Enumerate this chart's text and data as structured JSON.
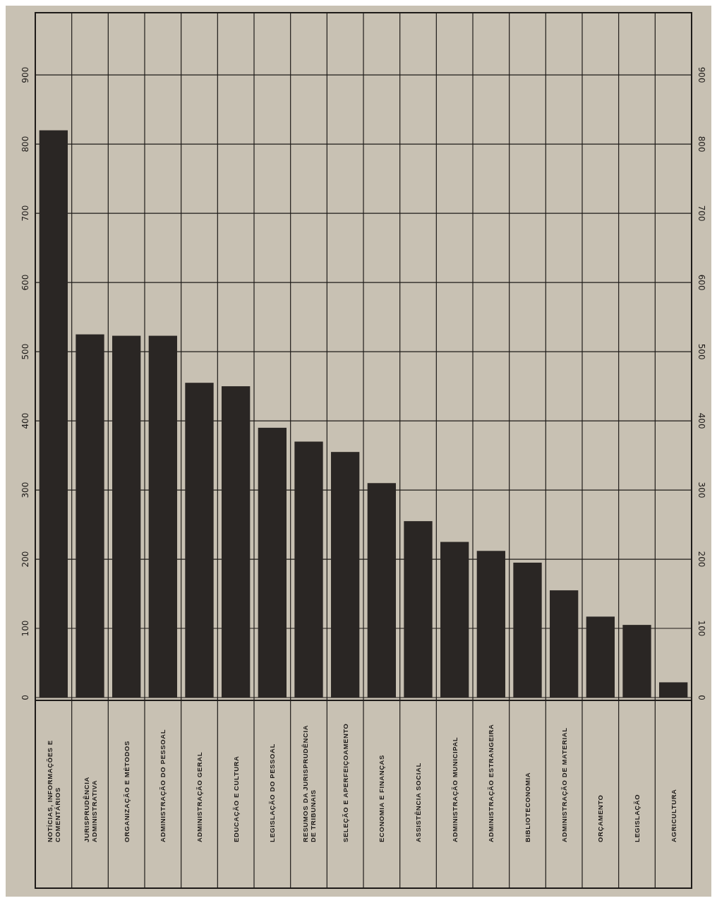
{
  "chart_data": {
    "type": "bar",
    "categories": [
      "NOTÍCIAS, INFORMAÇÕES E COMENTÁRIOS",
      "JURISPRUDÊNCIA ADMINISTRATIVA",
      "ORGANIZAÇÃO E MÉTODOS",
      "ADMINISTRAÇÃO DO PESSOAL",
      "ADMINISTRAÇÃO GERAL",
      "EDUCAÇÃO E CULTURA",
      "LEGISLAÇÃO DO PESSOAL",
      "RESUMOS DA JURISPRUDÊNCIA DE TRIBUNAIS",
      "SELEÇÃO E APERFEIÇOAMENTO",
      "ECONOMIA E FINANÇAS",
      "ASSISTÊNCIA SOCIAL",
      "ADMINISTRAÇÃO MUNICIPAL",
      "ADMINISTRAÇÃO ESTRANGEIRA",
      "BIBLIOTECONOMIA",
      "ADMINISTRAÇÃO DE MATERIAL",
      "ORÇAMENTO",
      "LEGISLAÇÃO",
      "AGRICULTURA"
    ],
    "values": [
      820,
      525,
      523,
      523,
      455,
      450,
      390,
      370,
      355,
      310,
      255,
      225,
      212,
      195,
      155,
      117,
      105,
      22
    ],
    "color": "#2a2624",
    "ylim": [
      0,
      990
    ],
    "yticks": [
      0,
      100,
      200,
      300,
      400,
      500,
      600,
      700,
      800,
      900
    ],
    "y2lim": [
      0,
      990
    ],
    "y2ticks": [
      0,
      100,
      200,
      300,
      400,
      500,
      600,
      700,
      800,
      900
    ],
    "grid": true
  }
}
